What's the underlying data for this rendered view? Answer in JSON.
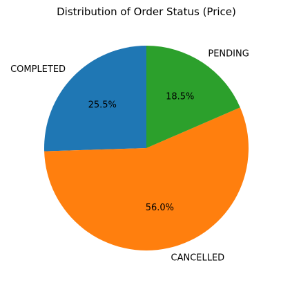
{
  "chart_data": {
    "type": "pie",
    "title": "Distribution of Order Status (Price)",
    "slices": [
      {
        "label": "COMPLETED",
        "percent": 25.5,
        "display": "25.5%",
        "color": "#1f77b4"
      },
      {
        "label": "CANCELLED",
        "percent": 56.0,
        "display": "56.0%",
        "color": "#ff7f0e"
      },
      {
        "label": "PENDING",
        "percent": 18.5,
        "display": "18.5%",
        "color": "#2ca02c"
      }
    ],
    "start_angle_deg": 90,
    "direction": "counterclockwise",
    "legend": "none"
  }
}
